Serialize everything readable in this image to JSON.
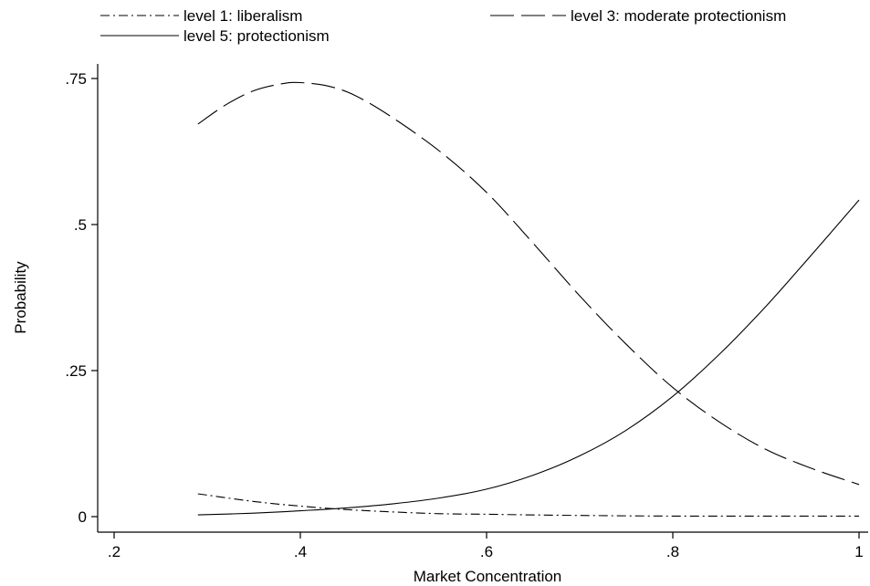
{
  "chart_data": {
    "type": "line",
    "title": "",
    "xlabel": "Market Concentration",
    "ylabel": "Probability",
    "xlim": [
      0.2,
      1.0
    ],
    "ylim": [
      0,
      0.75
    ],
    "xticks": [
      {
        "value": 0.2,
        "label": ".2"
      },
      {
        "value": 0.4,
        "label": ".4"
      },
      {
        "value": 0.6,
        "label": ".6"
      },
      {
        "value": 0.8,
        "label": ".8"
      },
      {
        "value": 1.0,
        "label": "1"
      }
    ],
    "yticks": [
      {
        "value": 0,
        "label": "0"
      },
      {
        "value": 0.25,
        "label": ".25"
      },
      {
        "value": 0.5,
        "label": ".5"
      },
      {
        "value": 0.75,
        "label": ".75"
      }
    ],
    "grid": false,
    "legend_position": "top",
    "series": [
      {
        "name": "level 1: liberalism",
        "style": "dash-dot",
        "color": "#000000",
        "x": [
          0.29,
          0.35,
          0.4,
          0.45,
          0.5,
          0.55,
          0.6,
          0.7,
          0.8,
          0.9,
          1.0
        ],
        "y": [
          0.039,
          0.026,
          0.018,
          0.012,
          0.008,
          0.005,
          0.004,
          0.002,
          0.001,
          0.001,
          0.001
        ]
      },
      {
        "name": "level 3: moderate protectionism",
        "style": "dashed",
        "color": "#000000",
        "x": [
          0.29,
          0.32,
          0.35,
          0.38,
          0.4,
          0.43,
          0.46,
          0.5,
          0.55,
          0.6,
          0.65,
          0.7,
          0.75,
          0.8,
          0.85,
          0.9,
          0.95,
          1.0
        ],
        "y": [
          0.672,
          0.705,
          0.729,
          0.741,
          0.743,
          0.737,
          0.72,
          0.682,
          0.625,
          0.555,
          0.468,
          0.378,
          0.295,
          0.221,
          0.162,
          0.115,
          0.082,
          0.055
        ]
      },
      {
        "name": "level 5: protectionism",
        "style": "solid",
        "color": "#000000",
        "x": [
          0.29,
          0.35,
          0.4,
          0.45,
          0.5,
          0.55,
          0.6,
          0.65,
          0.7,
          0.75,
          0.8,
          0.85,
          0.9,
          0.95,
          1.0
        ],
        "y": [
          0.003,
          0.006,
          0.01,
          0.015,
          0.022,
          0.032,
          0.047,
          0.071,
          0.104,
          0.148,
          0.206,
          0.278,
          0.36,
          0.45,
          0.542
        ]
      }
    ]
  }
}
